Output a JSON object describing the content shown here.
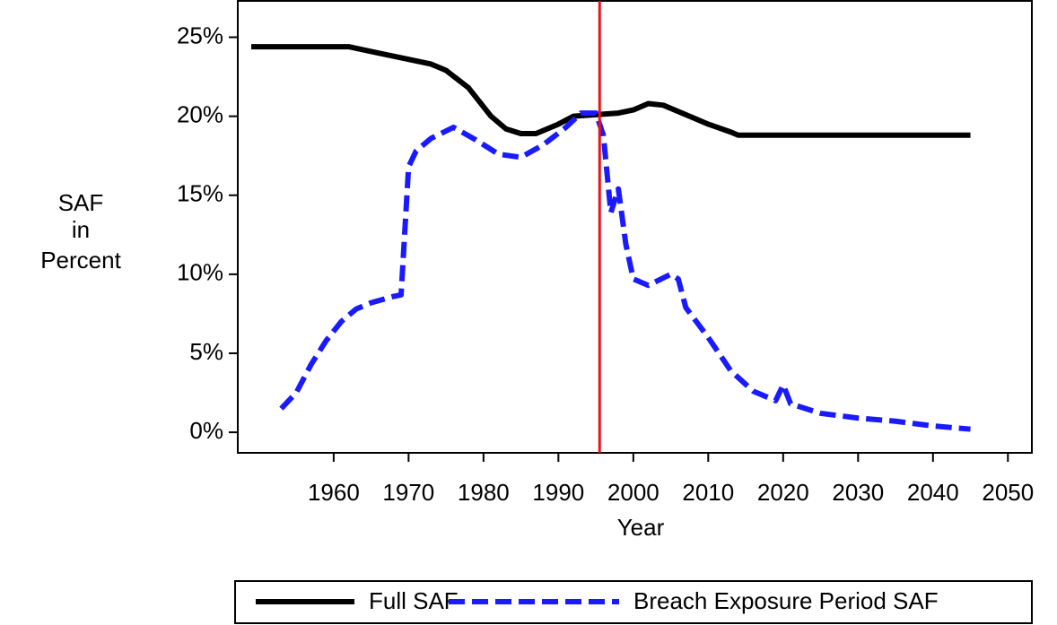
{
  "chart_data": {
    "type": "line",
    "xlabel": "Year",
    "ylabel": [
      "SAF",
      "in",
      "Percent"
    ],
    "xlim": [
      1947.2,
      2053.2
    ],
    "xticks": [
      1960,
      1970,
      1980,
      1990,
      2000,
      2010,
      2020,
      2030,
      2040,
      2050
    ],
    "ylim": [
      -1.3,
      27.3
    ],
    "yticks": [
      {
        "value": 0,
        "label": "0%"
      },
      {
        "value": 5,
        "label": "5%"
      },
      {
        "value": 10,
        "label": "10%"
      },
      {
        "value": 15,
        "label": "15%"
      },
      {
        "value": 20,
        "label": "20%"
      },
      {
        "value": 25,
        "label": "25%"
      }
    ],
    "vline": {
      "x": 1995.5,
      "color": "#e8141b"
    },
    "series": [
      {
        "name": "Full SAF",
        "color": "#000000",
        "dashed": false,
        "x": [
          1949,
          1962,
          1965,
          1970,
          1973,
          1975,
          1978,
          1981,
          1983,
          1985,
          1987,
          1990,
          1992,
          1995,
          1998,
          2000,
          2002,
          2004,
          2007,
          2010,
          2013,
          2014,
          2045
        ],
        "values": [
          24.4,
          24.4,
          24.1,
          23.6,
          23.3,
          22.9,
          21.8,
          20.0,
          19.2,
          18.9,
          18.9,
          19.5,
          20.0,
          20.1,
          20.2,
          20.4,
          20.8,
          20.7,
          20.1,
          19.5,
          19.0,
          18.8,
          18.8
        ]
      },
      {
        "name": "Breach Exposure Period SAF",
        "color": "#1a1aff",
        "dashed": true,
        "x": [
          1953,
          1955,
          1957,
          1959,
          1961,
          1963,
          1965,
          1968,
          1969,
          1970,
          1971,
          1973,
          1976,
          1979,
          1982,
          1985,
          1988,
          1991,
          1993,
          1995,
          1996,
          1997,
          1998,
          1999,
          2000,
          2002,
          2005,
          2006,
          2007,
          2010,
          2013,
          2016,
          2019,
          2020,
          2021,
          2025,
          2030,
          2035,
          2040,
          2045
        ],
        "values": [
          1.5,
          2.5,
          4.3,
          5.8,
          7.0,
          7.8,
          8.2,
          8.6,
          8.7,
          16.8,
          17.8,
          18.6,
          19.3,
          18.5,
          17.6,
          17.4,
          18.2,
          19.3,
          20.2,
          20.2,
          18.8,
          13.9,
          15.4,
          11.9,
          9.7,
          9.3,
          10.0,
          9.7,
          7.9,
          6.0,
          3.9,
          2.6,
          2.0,
          3.0,
          1.8,
          1.2,
          0.9,
          0.7,
          0.4,
          0.2
        ]
      }
    ]
  }
}
